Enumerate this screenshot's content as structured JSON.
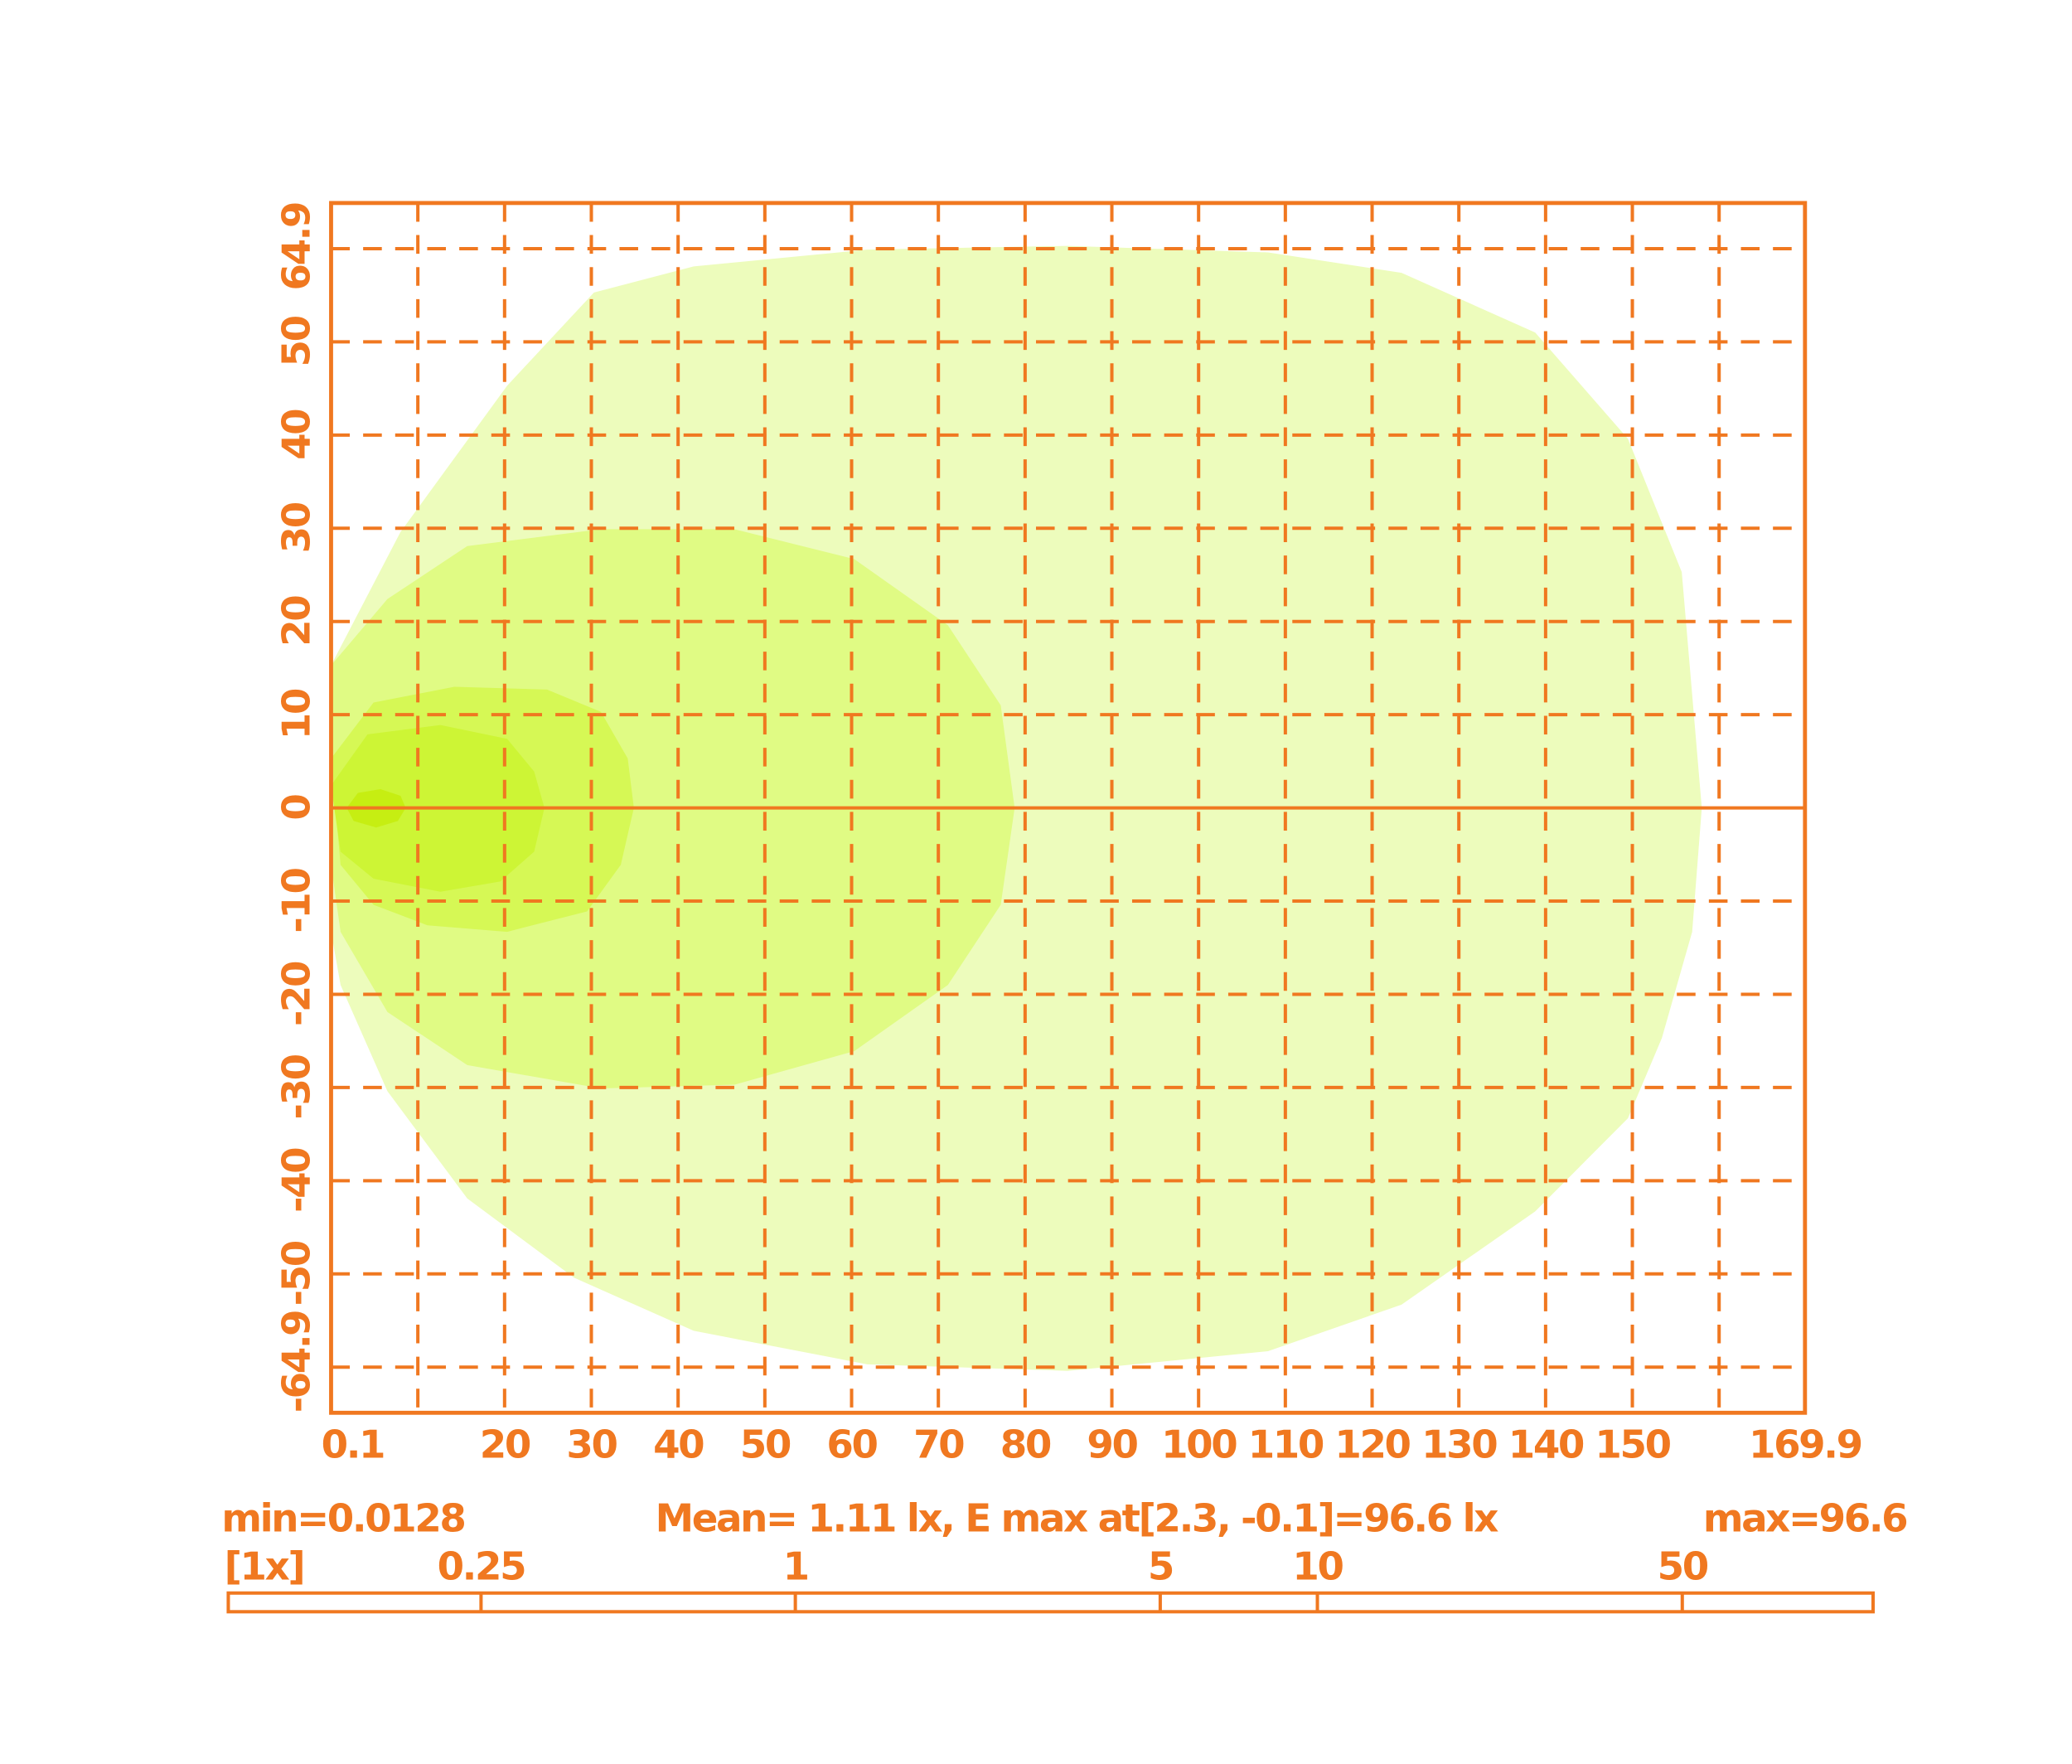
{
  "chart_data": {
    "type": "contour",
    "color": "#f07820",
    "grid": true,
    "xlim": [
      0,
      169.9
    ],
    "ylim": [
      -64.9,
      64.9
    ],
    "xticks": [
      0.1,
      20,
      30,
      40,
      50,
      60,
      70,
      80,
      90,
      100,
      110,
      120,
      130,
      140,
      150,
      169.9
    ],
    "yticks": [
      -64.9,
      -50,
      -40,
      -30,
      -20,
      -10,
      0,
      10,
      20,
      30,
      40,
      50,
      64.9
    ],
    "xgrid": [
      10,
      20,
      30,
      40,
      50,
      60,
      70,
      80,
      90,
      100,
      110,
      120,
      130,
      140,
      150,
      160
    ],
    "ygrid": [
      -60,
      -50,
      -40,
      -30,
      -20,
      -10,
      10,
      20,
      30,
      40,
      50,
      60
    ],
    "contours": [
      {
        "color": "#edfcbc",
        "x": [
          0,
          8.0,
          20.3,
          30.3,
          41.8,
          61.8,
          84.9,
          108.0,
          123.4,
          138.8,
          149.5,
          155.7,
          158.0,
          156.9,
          153.4,
          149.5,
          138.8,
          123.4,
          108.0,
          84.9,
          61.8,
          41.8,
          28.0,
          15.7,
          6.5,
          1.1,
          0
        ],
        "y": [
          15.3,
          29.6,
          45.3,
          55.3,
          58.1,
          59.9,
          60.3,
          59.6,
          57.4,
          51.0,
          39.6,
          25.3,
          0,
          -13.3,
          -24.7,
          -33.3,
          -43.3,
          -53.3,
          -58.3,
          -60.4,
          -59.7,
          -56.1,
          -50.4,
          -41.9,
          -30.4,
          -19.0,
          -13.3
        ]
      },
      {
        "color": "#e0fb84",
        "x": [
          0,
          6.5,
          15.7,
          31.1,
          46.5,
          60.3,
          71.1,
          77.2,
          78.8,
          77.2,
          71.1,
          60.3,
          46.5,
          31.1,
          15.7,
          6.5,
          1.1,
          0
        ],
        "y": [
          15.3,
          22.4,
          28.1,
          29.9,
          29.9,
          26.7,
          19.6,
          11.0,
          0,
          -10.4,
          -19.0,
          -26.1,
          -29.7,
          -30.1,
          -27.6,
          -21.9,
          -13.3,
          -6.1
        ]
      },
      {
        "color": "#d6f855",
        "x": [
          0,
          4.9,
          14.2,
          24.9,
          31.1,
          34.2,
          34.9,
          33.4,
          29.5,
          20.3,
          11.1,
          4.9,
          1.1
        ],
        "y": [
          5.3,
          11.3,
          13.0,
          12.7,
          10.3,
          5.3,
          0,
          -6.1,
          -11.1,
          -13.3,
          -12.6,
          -10.4,
          -6.1
        ]
      },
      {
        "color": "#cdf535",
        "x": [
          0,
          4.2,
          12.6,
          20.3,
          23.4,
          24.6,
          23.4,
          19.5,
          12.6,
          4.9,
          1.1
        ],
        "y": [
          2.4,
          7.9,
          8.9,
          7.4,
          3.9,
          0,
          -4.7,
          -7.9,
          -9.0,
          -7.6,
          -4.7
        ]
      },
      {
        "color": "#c6ee12",
        "x": [
          1.8,
          3.1,
          5.7,
          8.0,
          8.6,
          7.7,
          5.2,
          2.6
        ],
        "y": [
          0,
          1.6,
          2.0,
          1.3,
          0,
          -1.4,
          -2.1,
          -1.4
        ]
      }
    ],
    "min_label": "min=0.0128",
    "mean_label": "Mean= 1.11 lx, E max at[2.3, -0.1]=96.6 lx",
    "max_label": "max=96.6",
    "scale": {
      "label": "[1x]",
      "log": true,
      "lim": [
        0.082,
        116
      ],
      "ticks": [
        0.25,
        1,
        5,
        10,
        50
      ]
    }
  }
}
